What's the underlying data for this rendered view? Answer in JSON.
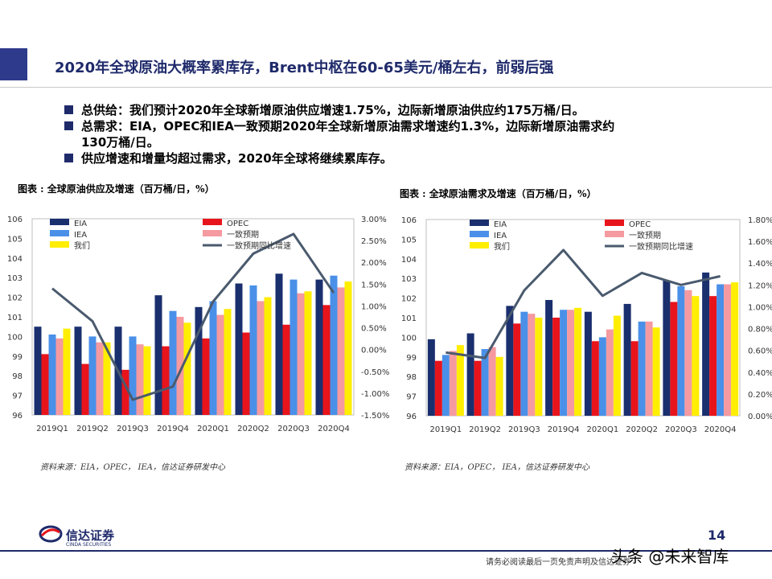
{
  "page": {
    "title": "2020年全球原油大概率累库存，Brent中枢在60-65美元/桶左右，前弱后强",
    "bullets": [
      "总供给：我们预计2020年全球新增原油供应增速1.75%，边际新增原油供应约175万桶/日。",
      "总需求：EIA，OPEC和IEA一致预期2020年全球新增原油需求增速约1.3%，边际新增原油需求约",
      "130万桶/日。",
      "供应增速和增量均超过需求，2020年全球将继续累库存。"
    ],
    "page_number": "14",
    "disclaimer": "请务必阅读最后一页免责声明及信达证券",
    "watermark": "头条 @未来智库",
    "logo": {
      "name": "信达证券",
      "sub": "CINDA SECURITIES"
    }
  },
  "colors": {
    "EIA": "#1a2f6e",
    "OPEC": "#e8141b",
    "IEA": "#4a90e8",
    "consensus": "#f59aa0",
    "ours": "#ffee00",
    "line": "#4a5a6e",
    "brand": "#1f2a6b"
  },
  "chart_data": [
    {
      "type": "bar",
      "caption": "图表 : 全球原油供应及增速（百万桶/日，%）",
      "source": "资料来源：EIA，OPEC， IEA，信达证券研发中心",
      "categories": [
        "2019Q1",
        "2019Q2",
        "2019Q3",
        "2019Q4",
        "2020Q1",
        "2020Q2",
        "2020Q3",
        "2020Q4"
      ],
      "ylim": [
        96,
        106
      ],
      "yticks": [
        "96",
        "97",
        "98",
        "99",
        "100",
        "101",
        "102",
        "103",
        "104",
        "105",
        "106"
      ],
      "y2lim": [
        -1.5,
        3.0
      ],
      "y2ticks": [
        "-1.50%",
        "-1.00%",
        "-0.50%",
        "0.00%",
        "0.50%",
        "1.00%",
        "1.50%",
        "2.00%",
        "2.50%",
        "3.00%"
      ],
      "legend": [
        "EIA",
        "OPEC",
        "IEA",
        "一致预期",
        "我们",
        "一致预期同比增速"
      ],
      "series": [
        {
          "name": "EIA",
          "values": [
            100.5,
            100.5,
            100.5,
            102.1,
            101.5,
            102.7,
            103.2,
            102.9
          ]
        },
        {
          "name": "OPEC",
          "values": [
            99.1,
            98.6,
            98.3,
            99.5,
            99.9,
            100.2,
            100.6,
            101.6
          ]
        },
        {
          "name": "IEA",
          "values": [
            100.1,
            100.0,
            100.0,
            101.3,
            101.8,
            102.6,
            102.9,
            103.1
          ]
        },
        {
          "name": "一致预期",
          "values": [
            99.9,
            99.7,
            99.6,
            101.0,
            101.1,
            101.8,
            102.2,
            102.5
          ]
        },
        {
          "name": "我们",
          "values": [
            100.4,
            99.7,
            99.5,
            100.7,
            101.4,
            102.0,
            102.3,
            102.8
          ]
        }
      ],
      "line_series": {
        "name": "一致预期同比增速",
        "values": [
          1.4,
          0.65,
          -1.15,
          -0.85,
          1.1,
          2.2,
          2.65,
          1.3
        ]
      }
    },
    {
      "type": "bar",
      "caption": "图表 : 全球原油需求及增速（百万桶/日，%）",
      "source": "资料来源：EIA，OPEC， IEA，信达证券研发中心",
      "categories": [
        "2019Q1",
        "2019Q2",
        "2019Q3",
        "2019Q4",
        "2020Q1",
        "2020Q2",
        "2020Q3",
        "2020Q4"
      ],
      "ylim": [
        96,
        106
      ],
      "yticks": [
        "96",
        "97",
        "98",
        "99",
        "100",
        "101",
        "102",
        "103",
        "104",
        "105",
        "106"
      ],
      "y2lim": [
        0.0,
        1.8
      ],
      "y2ticks": [
        "0.00%",
        "0.20%",
        "0.40%",
        "0.60%",
        "0.80%",
        "1.00%",
        "1.20%",
        "1.40%",
        "1.60%",
        "1.80%"
      ],
      "legend": [
        "EIA",
        "OPEC",
        "IEA",
        "一致预期",
        "我们",
        "一致预期同比增速"
      ],
      "series": [
        {
          "name": "EIA",
          "values": [
            99.9,
            100.2,
            101.6,
            101.9,
            101.3,
            101.7,
            102.9,
            103.3
          ]
        },
        {
          "name": "OPEC",
          "values": [
            98.8,
            98.8,
            100.7,
            101.0,
            99.8,
            99.8,
            101.8,
            102.1
          ]
        },
        {
          "name": "IEA",
          "values": [
            99.1,
            99.4,
            101.3,
            101.4,
            100.0,
            100.8,
            102.6,
            102.7
          ]
        },
        {
          "name": "一致预期",
          "values": [
            99.3,
            99.5,
            101.2,
            101.4,
            100.4,
            100.8,
            102.4,
            102.7
          ]
        },
        {
          "name": "我们",
          "values": [
            99.6,
            99.0,
            101.0,
            101.5,
            101.1,
            100.5,
            102.1,
            102.8
          ]
        }
      ],
      "line_series": {
        "name": "一致预期同比增速",
        "values": [
          0.58,
          0.53,
          1.15,
          1.52,
          1.1,
          1.31,
          1.2,
          1.28
        ]
      }
    }
  ]
}
